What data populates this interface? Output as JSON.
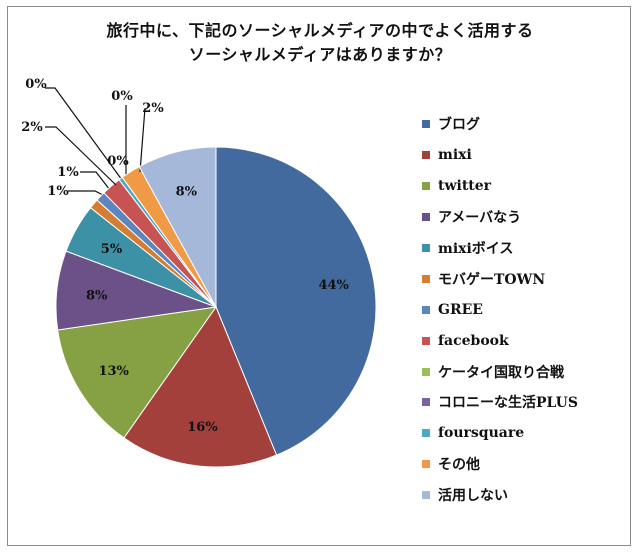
{
  "chart_data": {
    "type": "pie",
    "title_lines": [
      "旅行中に、下記のソーシャルメディアの中でよく活用する",
      "ソーシャルメディアはありますか？"
    ],
    "categories": [
      "ブログ",
      "mixi",
      "twitter",
      "アメーバなう",
      "mixiボイス",
      "モバゲーTOWN",
      "GREE",
      "facebook",
      "ケータイ国取り合戦",
      "コロニーな生活PLUS",
      "foursquare",
      "その他",
      "活用しない"
    ],
    "values": [
      44,
      16,
      13,
      8,
      5,
      1,
      1,
      2,
      0,
      0,
      0.4,
      2,
      8
    ],
    "data_labels": [
      "44%",
      "16%",
      "13%",
      "8%",
      "5%",
      "1%",
      "1%",
      "2%",
      "0%",
      "0%",
      "0%",
      "2%",
      "8%"
    ],
    "colors": [
      "#426A9E",
      "#A4403C",
      "#86A143",
      "#6C5189",
      "#3C91A7",
      "#D37E33",
      "#5B86BF",
      "#C75352",
      "#9CBD5A",
      "#7D62A1",
      "#4BA9C3",
      "#F19A46",
      "#A6B8D9"
    ],
    "legend_position": "right"
  }
}
